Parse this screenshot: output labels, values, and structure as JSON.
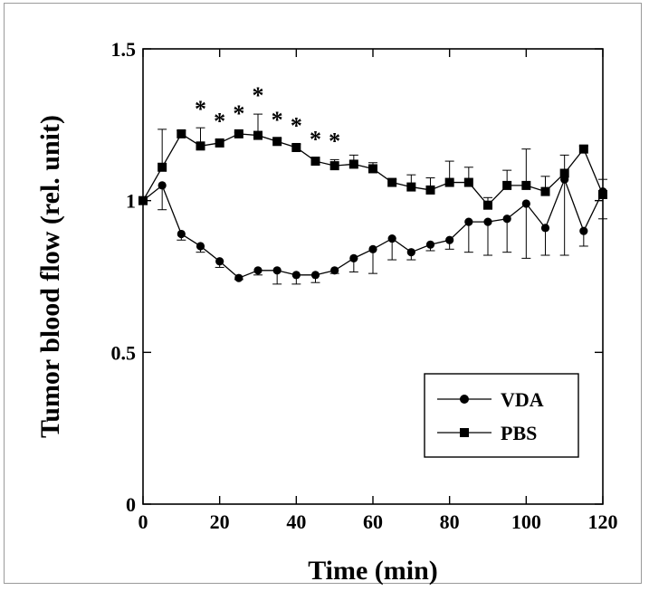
{
  "chart_data": {
    "type": "line",
    "xlabel": "Time (min)",
    "ylabel": "Tumor blood flow (rel. unit)",
    "xlim": [
      0,
      120
    ],
    "ylim": [
      0,
      1.5
    ],
    "xticks": [
      0,
      20,
      40,
      60,
      80,
      100,
      120
    ],
    "xtick_labels": [
      "0",
      "20",
      "40",
      "60",
      "80",
      "100",
      "120"
    ],
    "yticks": [
      0,
      0.5,
      1,
      1.5
    ],
    "ytick_labels": [
      "0",
      "0.5",
      "1",
      "1.5"
    ],
    "grid": false,
    "legend_position": "bottom-right",
    "significance_marker": "*",
    "significance_x": [
      15,
      20,
      25,
      30,
      35,
      40,
      45,
      50
    ],
    "x": [
      0,
      5,
      10,
      15,
      20,
      25,
      30,
      35,
      40,
      45,
      50,
      55,
      60,
      65,
      70,
      75,
      80,
      85,
      90,
      95,
      100,
      105,
      110,
      115,
      120
    ],
    "series": [
      {
        "name": "VDA",
        "marker": "circle",
        "values": [
          1.0,
          1.05,
          0.89,
          0.85,
          0.8,
          0.745,
          0.77,
          0.77,
          0.755,
          0.755,
          0.77,
          0.81,
          0.84,
          0.875,
          0.83,
          0.855,
          0.87,
          0.93,
          0.93,
          0.94,
          0.99,
          0.91,
          1.07,
          0.9,
          1.03
        ],
        "error": [
          0,
          0.08,
          0.02,
          0.02,
          0.02,
          0.005,
          0.015,
          0.045,
          0.03,
          0.025,
          0.01,
          0.045,
          0.08,
          0.07,
          0.025,
          0.02,
          0.03,
          0.1,
          0.11,
          0.11,
          0.18,
          0.09,
          0.25,
          0.05,
          0.09
        ]
      },
      {
        "name": "PBS",
        "marker": "square",
        "values": [
          1.0,
          1.11,
          1.22,
          1.18,
          1.19,
          1.22,
          1.215,
          1.195,
          1.175,
          1.13,
          1.115,
          1.12,
          1.105,
          1.06,
          1.045,
          1.035,
          1.06,
          1.06,
          0.985,
          1.05,
          1.05,
          1.03,
          1.09,
          1.17,
          1.02
        ],
        "error": [
          0,
          0.125,
          0.01,
          0.06,
          0.01,
          0.005,
          0.07,
          0.01,
          0.01,
          0.01,
          0.02,
          0.03,
          0.02,
          0.01,
          0.04,
          0.04,
          0.07,
          0.05,
          0.025,
          0.05,
          0.12,
          0.05,
          0.06,
          0.01,
          0.05
        ]
      }
    ]
  }
}
